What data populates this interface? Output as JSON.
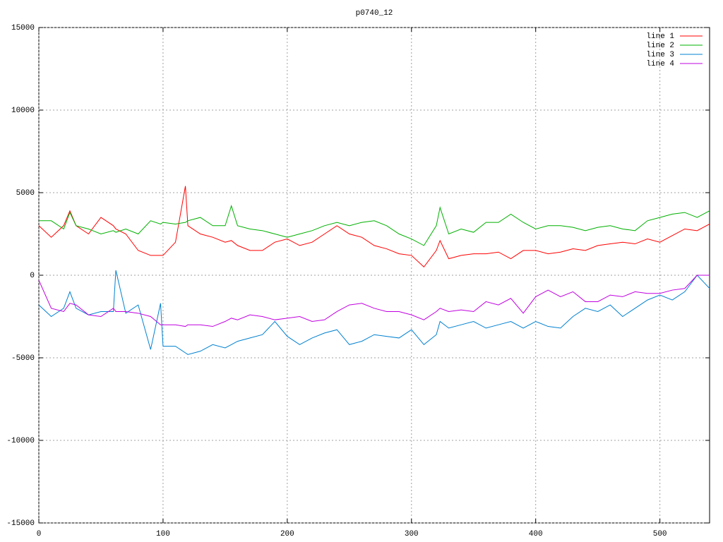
{
  "chart_data": {
    "type": "line",
    "title": "p0740_12",
    "x": [
      0,
      10,
      20,
      25,
      30,
      40,
      50,
      60,
      62,
      70,
      80,
      90,
      98,
      100,
      110,
      118,
      120,
      130,
      140,
      150,
      155,
      160,
      170,
      180,
      190,
      200,
      210,
      220,
      230,
      240,
      250,
      260,
      270,
      280,
      290,
      300,
      310,
      320,
      323,
      330,
      340,
      350,
      360,
      370,
      380,
      390,
      400,
      410,
      420,
      430,
      440,
      450,
      460,
      470,
      480,
      490,
      500,
      510,
      520,
      530,
      540
    ],
    "series": [
      {
        "name": "line 1",
        "color": "#ff0000",
        "values": [
          3000,
          2300,
          3000,
          3900,
          3000,
          2500,
          3500,
          3000,
          2800,
          2500,
          1500,
          1200,
          1200,
          1200,
          2000,
          5400,
          3000,
          2500,
          2300,
          2000,
          2100,
          1800,
          1500,
          1500,
          2000,
          2200,
          1800,
          2000,
          2500,
          3000,
          2500,
          2300,
          1800,
          1600,
          1300,
          1200,
          500,
          1500,
          2100,
          1000,
          1200,
          1300,
          1300,
          1400,
          1000,
          1500,
          1500,
          1300,
          1400,
          1600,
          1500,
          1800,
          1900,
          2000,
          1900,
          2200,
          2000,
          2400,
          2800,
          2700,
          3100
        ]
      },
      {
        "name": "line 2",
        "color": "#00b000",
        "values": [
          3300,
          3300,
          2800,
          3800,
          3000,
          2800,
          2500,
          2700,
          2600,
          2800,
          2500,
          3300,
          3100,
          3200,
          3100,
          3200,
          3300,
          3500,
          3000,
          3000,
          4200,
          3000,
          2800,
          2700,
          2500,
          2300,
          2500,
          2700,
          3000,
          3200,
          3000,
          3200,
          3300,
          3000,
          2500,
          2200,
          1800,
          3000,
          4100,
          2500,
          2800,
          2600,
          3200,
          3200,
          3700,
          3200,
          2800,
          3000,
          3000,
          2900,
          2700,
          2900,
          3000,
          2800,
          2700,
          3300,
          3500,
          3700,
          3800,
          3500,
          3900
        ]
      },
      {
        "name": "line 3",
        "color": "#0080d0",
        "values": [
          -1800,
          -2500,
          -2000,
          -1000,
          -2000,
          -2400,
          -2200,
          -2200,
          300,
          -2300,
          -1800,
          -4500,
          -1700,
          -4300,
          -4300,
          -4700,
          -4800,
          -4600,
          -4200,
          -4400,
          -4200,
          -4000,
          -3800,
          -3600,
          -2800,
          -3700,
          -4200,
          -3800,
          -3500,
          -3300,
          -4200,
          -4000,
          -3600,
          -3700,
          -3800,
          -3300,
          -4200,
          -3600,
          -2800,
          -3200,
          -3000,
          -2800,
          -3200,
          -3000,
          -2800,
          -3200,
          -2800,
          -3100,
          -3200,
          -2500,
          -2000,
          -2200,
          -1800,
          -2500,
          -2000,
          -1500,
          -1200,
          -1500,
          -1000,
          0,
          -800
        ]
      },
      {
        "name": "line 4",
        "color": "#c000e0",
        "values": [
          -300,
          -2000,
          -2200,
          -1700,
          -1800,
          -2400,
          -2500,
          -2000,
          -2200,
          -2200,
          -2300,
          -2500,
          -3000,
          -3000,
          -3000,
          -3100,
          -3000,
          -3000,
          -3100,
          -2800,
          -2600,
          -2700,
          -2400,
          -2500,
          -2700,
          -2600,
          -2500,
          -2800,
          -2700,
          -2200,
          -1800,
          -1700,
          -2000,
          -2200,
          -2200,
          -2400,
          -2700,
          -2200,
          -2000,
          -2200,
          -2100,
          -2200,
          -1600,
          -1800,
          -1400,
          -2300,
          -1300,
          -900,
          -1300,
          -1000,
          -1600,
          -1600,
          -1200,
          -1300,
          -1000,
          -1100,
          -1100,
          -900,
          -800,
          0,
          0
        ]
      }
    ],
    "xlim": [
      0,
      540
    ],
    "xticks": [
      0,
      100,
      200,
      300,
      400,
      500
    ],
    "ylim": [
      -15000,
      15000
    ],
    "yticks": [
      -15000,
      -10000,
      -5000,
      0,
      5000,
      10000,
      15000
    ],
    "grid": true,
    "legend": "top-right"
  }
}
